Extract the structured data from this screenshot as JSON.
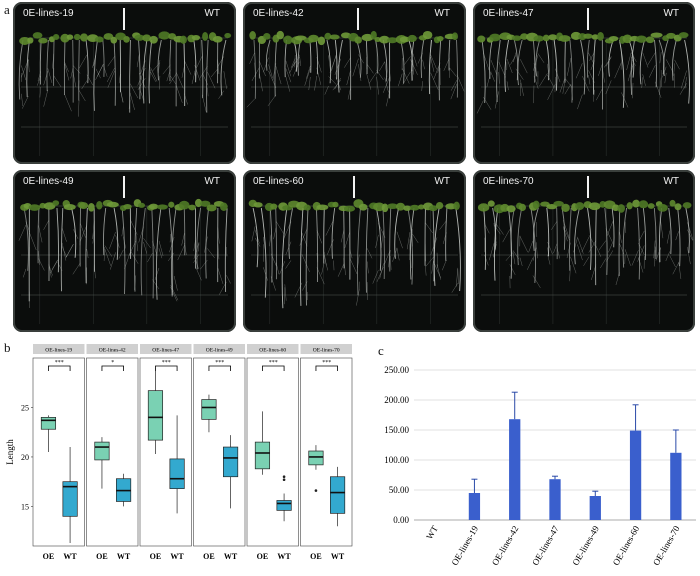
{
  "figure": {
    "panel_labels": {
      "a": "a",
      "b": "b",
      "c": "c"
    },
    "plates": [
      {
        "line": "0E-lines-19",
        "wt": "WT"
      },
      {
        "line": "0E-lines-42",
        "wt": "WT"
      },
      {
        "line": "0E-lines-47",
        "wt": "WT"
      },
      {
        "line": "0E-lines-49",
        "wt": "WT"
      },
      {
        "line": "0E-lines-60",
        "wt": "WT"
      },
      {
        "line": "0E-lines-70",
        "wt": "WT"
      }
    ]
  },
  "chart_data": [
    {
      "type": "box",
      "ylabel": "Length",
      "ylim": [
        11,
        30
      ],
      "yticks": [
        15,
        20,
        25
      ],
      "xtick_labels": [
        "OE",
        "WT"
      ],
      "facets": [
        {
          "strip": "OE-lines-19",
          "sig": "***",
          "OE": {
            "min": 20.5,
            "q1": 22.8,
            "median": 23.7,
            "q3": 24.0,
            "max": 24.2,
            "outliers": []
          },
          "WT": {
            "min": 11.3,
            "q1": 14.0,
            "median": 17.0,
            "q3": 17.5,
            "max": 21.0,
            "outliers": []
          }
        },
        {
          "strip": "OE-lines-42",
          "sig": "*",
          "OE": {
            "min": 16.8,
            "q1": 19.7,
            "median": 21.0,
            "q3": 21.5,
            "max": 22.0,
            "outliers": []
          },
          "WT": {
            "min": 15.0,
            "q1": 15.5,
            "median": 16.6,
            "q3": 17.8,
            "max": 18.3,
            "outliers": []
          }
        },
        {
          "strip": "OE-lines-47",
          "sig": "***",
          "OE": {
            "min": 20.3,
            "q1": 21.7,
            "median": 24.0,
            "q3": 26.7,
            "max": 29.0,
            "outliers": []
          },
          "WT": {
            "min": 14.3,
            "q1": 16.8,
            "median": 17.8,
            "q3": 19.8,
            "max": 24.2,
            "outliers": []
          }
        },
        {
          "strip": "OE-lines-49",
          "sig": "***",
          "OE": {
            "min": 22.5,
            "q1": 23.8,
            "median": 25.0,
            "q3": 25.8,
            "max": 26.3,
            "outliers": []
          },
          "WT": {
            "min": 14.8,
            "q1": 18.0,
            "median": 19.9,
            "q3": 21.0,
            "max": 22.2,
            "outliers": []
          }
        },
        {
          "strip": "OE-lines-60",
          "sig": "***",
          "OE": {
            "min": 18.2,
            "q1": 18.8,
            "median": 20.4,
            "q3": 21.5,
            "max": 24.6,
            "outliers": []
          },
          "WT": {
            "min": 13.5,
            "q1": 14.6,
            "median": 15.3,
            "q3": 15.6,
            "max": 16.3,
            "outliers": [
              17.7,
              18.0
            ]
          }
        },
        {
          "strip": "OE-lines-70",
          "sig": "***",
          "OE": {
            "min": 18.7,
            "q1": 19.2,
            "median": 20.0,
            "q3": 20.6,
            "max": 21.2,
            "outliers": [
              16.6
            ]
          },
          "WT": {
            "min": 13.0,
            "q1": 14.3,
            "median": 16.4,
            "q3": 18.0,
            "max": 19.0,
            "outliers": []
          }
        }
      ]
    },
    {
      "type": "bar",
      "categories": [
        "WT",
        "OE-lines-19",
        "OE-lines-42",
        "OE-lines-47",
        "OE-lines-49",
        "OE-lines-60",
        "OE-lines-70"
      ],
      "values": [
        0,
        45,
        168,
        68,
        40,
        149,
        112
      ],
      "errors": [
        0,
        23,
        45,
        5,
        8,
        43,
        38
      ],
      "ylim": [
        0,
        250
      ],
      "yticks": [
        "0.00",
        "50.00",
        "100.00",
        "150.00",
        "200.00",
        "250.00"
      ],
      "color": "#3a5fcd",
      "xlabel": "",
      "ylabel": ""
    }
  ]
}
